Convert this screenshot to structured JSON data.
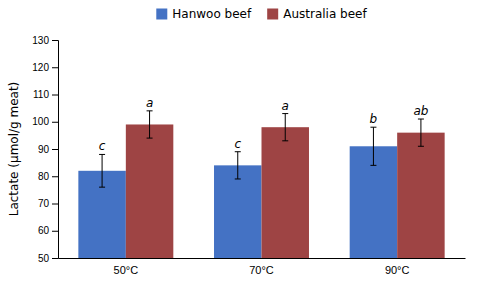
{
  "chart_data": {
    "type": "bar",
    "y_label": "Lactate (μmol/g meat)",
    "categories": [
      "50°C",
      "70°C",
      "90°C"
    ],
    "series": [
      {
        "name": "Hanwoo beef",
        "color": "#4472C4",
        "values": [
          82,
          84,
          91
        ],
        "errors": [
          6,
          5,
          7
        ],
        "annotations": [
          "c",
          "c",
          "b"
        ]
      },
      {
        "name": "Australia beef",
        "color": "#9E4444",
        "values": [
          99,
          98,
          96
        ],
        "errors": [
          5,
          5,
          5
        ],
        "annotations": [
          "a",
          "a",
          "ab"
        ]
      }
    ],
    "ylim": [
      50,
      130
    ],
    "yticks": [
      50,
      60,
      70,
      80,
      90,
      100,
      110,
      120,
      130
    ],
    "grid": false,
    "legend": "top"
  }
}
